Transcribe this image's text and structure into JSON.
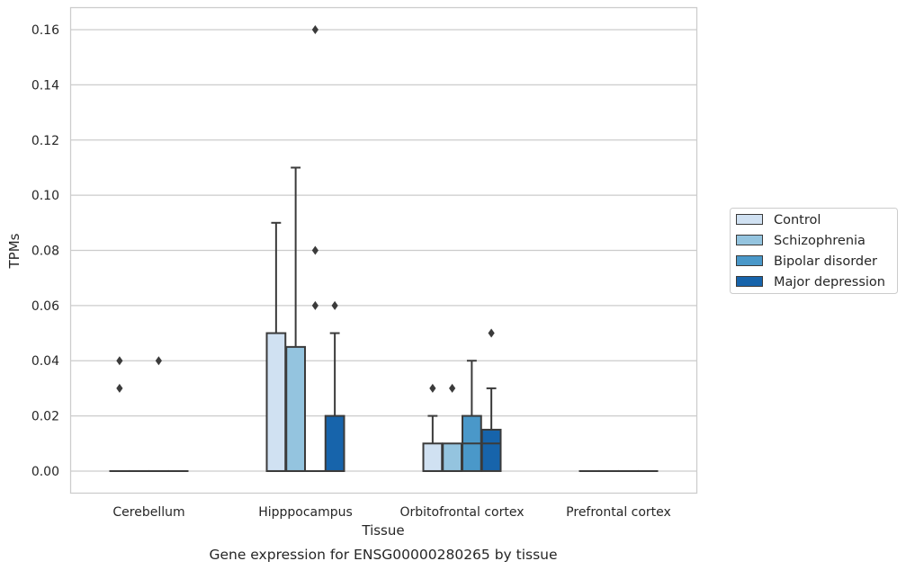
{
  "caption": "Gene expression for ENSG00000280265 by tissue",
  "chart_data": {
    "type": "box",
    "xlabel": "Tissue",
    "ylabel": "TPMs",
    "ylim": [
      -0.008,
      0.168
    ],
    "yticks": [
      0.0,
      0.02,
      0.04,
      0.06,
      0.08,
      0.1,
      0.12,
      0.14,
      0.16
    ],
    "ytick_labels": [
      "0.00",
      "0.02",
      "0.04",
      "0.06",
      "0.08",
      "0.10",
      "0.12",
      "0.14",
      "0.16"
    ],
    "grid": true,
    "legend_placement": "right",
    "categories": [
      "Cerebellum",
      "Hipppocampus",
      "Orbitofrontal cortex",
      "Prefrontal cortex"
    ],
    "series": [
      {
        "name": "Control",
        "color": "#d0e1f2",
        "boxes": [
          {
            "q1": 0.0,
            "median": 0.0,
            "q3": 0.0,
            "whislo": 0.0,
            "whishi": 0.0,
            "fliers": [
              0.03,
              0.04
            ]
          },
          {
            "q1": 0.0,
            "median": 0.0,
            "q3": 0.05,
            "whislo": 0.0,
            "whishi": 0.09,
            "fliers": []
          },
          {
            "q1": 0.0,
            "median": 0.0,
            "q3": 0.01,
            "whislo": 0.0,
            "whishi": 0.02,
            "fliers": [
              0.03
            ]
          },
          {
            "q1": 0.0,
            "median": 0.0,
            "q3": 0.0,
            "whislo": 0.0,
            "whishi": 0.0,
            "fliers": []
          }
        ]
      },
      {
        "name": "Schizophrenia",
        "color": "#94c4df",
        "boxes": [
          {
            "q1": 0.0,
            "median": 0.0,
            "q3": 0.0,
            "whislo": 0.0,
            "whishi": 0.0,
            "fliers": []
          },
          {
            "q1": 0.0,
            "median": 0.0,
            "q3": 0.045,
            "whislo": 0.0,
            "whishi": 0.11,
            "fliers": []
          },
          {
            "q1": 0.0,
            "median": 0.0,
            "q3": 0.01,
            "whislo": 0.0,
            "whishi": 0.01,
            "fliers": [
              0.03
            ]
          },
          {
            "q1": 0.0,
            "median": 0.0,
            "q3": 0.0,
            "whislo": 0.0,
            "whishi": 0.0,
            "fliers": []
          }
        ]
      },
      {
        "name": "Bipolar disorder",
        "color": "#4a98c9",
        "boxes": [
          {
            "q1": 0.0,
            "median": 0.0,
            "q3": 0.0,
            "whislo": 0.0,
            "whishi": 0.0,
            "fliers": [
              0.04
            ]
          },
          {
            "q1": 0.0,
            "median": 0.0,
            "q3": 0.0,
            "whislo": 0.0,
            "whishi": 0.0,
            "fliers": [
              0.06,
              0.08,
              0.16
            ]
          },
          {
            "q1": 0.0,
            "median": 0.01,
            "q3": 0.02,
            "whislo": 0.0,
            "whishi": 0.04,
            "fliers": []
          },
          {
            "q1": 0.0,
            "median": 0.0,
            "q3": 0.0,
            "whislo": 0.0,
            "whishi": 0.0,
            "fliers": []
          }
        ]
      },
      {
        "name": "Major depression",
        "color": "#1764ab",
        "boxes": [
          {
            "q1": 0.0,
            "median": 0.0,
            "q3": 0.0,
            "whislo": 0.0,
            "whishi": 0.0,
            "fliers": []
          },
          {
            "q1": 0.0,
            "median": 0.0,
            "q3": 0.02,
            "whislo": 0.0,
            "whishi": 0.05,
            "fliers": [
              0.06
            ]
          },
          {
            "q1": 0.0,
            "median": 0.01,
            "q3": 0.015,
            "whislo": 0.0,
            "whishi": 0.03,
            "fliers": [
              0.05
            ]
          },
          {
            "q1": 0.0,
            "median": 0.0,
            "q3": 0.0,
            "whislo": 0.0,
            "whishi": 0.0,
            "fliers": []
          }
        ]
      }
    ]
  }
}
